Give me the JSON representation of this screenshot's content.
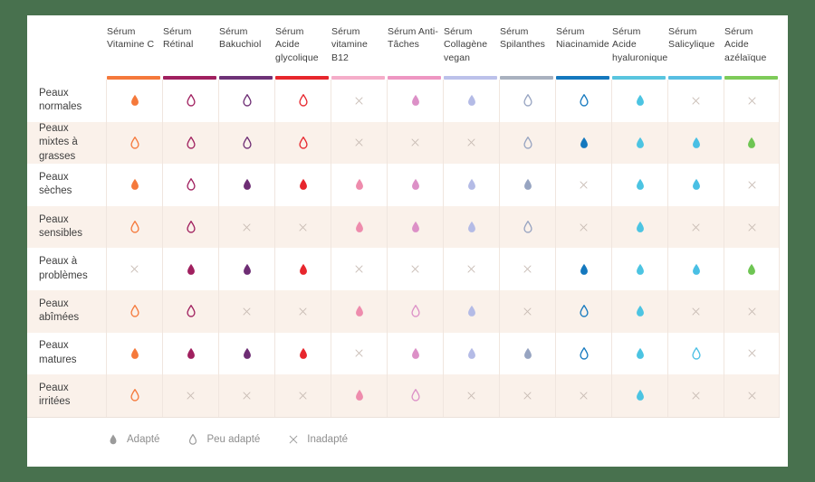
{
  "page": {
    "background_color": "#48714E",
    "card_color": "#FFFFFF"
  },
  "colors": {
    "text": "#3E3E3E",
    "stripe": "#FAF1EA",
    "cell_border": "#F0E6DF",
    "x_mark": "#C8BCB4",
    "legend_icon": "#9B9B9B",
    "legend_text": "#8E8E8E"
  },
  "matrix": {
    "columns": [
      {
        "label": "Sérum Vitamine C",
        "bar_color": "#F5793B",
        "drop_color": "#F5793B"
      },
      {
        "label": "Sérum Rétinal",
        "bar_color": "#A0205F",
        "drop_color": "#A0205F"
      },
      {
        "label": "Sérum Bakuchiol",
        "bar_color": "#6E3277",
        "drop_color": "#6E2D74"
      },
      {
        "label": "Sérum Acide glycolique",
        "bar_color": "#E7262D",
        "drop_color": "#E7262D"
      },
      {
        "label": "Sérum vitamine B12",
        "bar_color": "#F5ADC9",
        "drop_color": "#EE8CAD"
      },
      {
        "label": "Sérum Anti-Tâches",
        "bar_color": "#EE96C2",
        "drop_color": "#DC90C7"
      },
      {
        "label": "Sérum Collagène vegan",
        "bar_color": "#BCC1EA",
        "drop_color": "#B4BBE6"
      },
      {
        "label": "Sérum Spilanthes",
        "bar_color": "#A9B1BF",
        "drop_color": "#97A4C1"
      },
      {
        "label": "Sérum Niacinamide",
        "bar_color": "#1478BE",
        "drop_color": "#1478BE"
      },
      {
        "label": "Sérum Acide hyaluronique",
        "bar_color": "#59C5DF",
        "drop_color": "#4CC4E2"
      },
      {
        "label": "Sérum Salicylique",
        "bar_color": "#57BEE2",
        "drop_color": "#49BFE4"
      },
      {
        "label": "Sérum Acide azélaïque",
        "bar_color": "#7ECB59",
        "drop_color": "#6EC553"
      }
    ],
    "cell_states": {
      "a": "Adapté",
      "p": "Peu adapté",
      "x": "Inadapté"
    },
    "rows": [
      {
        "label": "Peaux normales",
        "cells": [
          "a",
          "p",
          "p",
          "p",
          "x",
          "a",
          "a",
          "p",
          "p",
          "a",
          "x",
          "x"
        ]
      },
      {
        "label": "Peaux mixtes à grasses",
        "cells": [
          "p",
          "p",
          "p",
          "p",
          "x",
          "x",
          "x",
          "p",
          "a",
          "a",
          "a",
          "a"
        ]
      },
      {
        "label": "Peaux sèches",
        "cells": [
          "a",
          "p",
          "a",
          "a",
          "a",
          "a",
          "a",
          "a",
          "x",
          "a",
          "a",
          "x"
        ]
      },
      {
        "label": "Peaux sensibles",
        "cells": [
          "p",
          "p",
          "x",
          "x",
          "a",
          "a",
          "a",
          "p",
          "x",
          "a",
          "x",
          "x"
        ]
      },
      {
        "label": "Peaux à problèmes",
        "cells": [
          "x",
          "a",
          "a",
          "a",
          "x",
          "x",
          "x",
          "x",
          "a",
          "a",
          "a",
          "a"
        ]
      },
      {
        "label": "Peaux abîmées",
        "cells": [
          "p",
          "p",
          "x",
          "x",
          "a",
          "p",
          "a",
          "x",
          "p",
          "a",
          "x",
          "x"
        ]
      },
      {
        "label": "Peaux matures",
        "cells": [
          "a",
          "a",
          "a",
          "a",
          "x",
          "a",
          "a",
          "a",
          "p",
          "a",
          "p",
          "x"
        ]
      },
      {
        "label": "Peaux irritées",
        "cells": [
          "p",
          "x",
          "x",
          "x",
          "a",
          "p",
          "x",
          "x",
          "x",
          "a",
          "x",
          "x"
        ]
      }
    ]
  },
  "legend": {
    "items": [
      {
        "icon": "drop-filled",
        "label": "Adapté"
      },
      {
        "icon": "drop-outline",
        "label": "Peu adapté"
      },
      {
        "icon": "x-mark",
        "label": "Inadapté"
      }
    ]
  }
}
